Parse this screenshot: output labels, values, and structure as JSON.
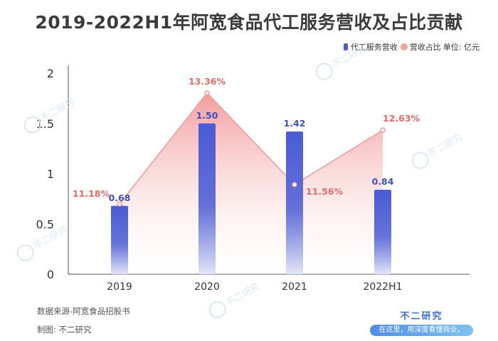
{
  "title": "2019-2022H1年阿宽食品代工服务营收及占比贡献",
  "legend": {
    "bar_label": "代工服务营收",
    "line_label": "营收占比",
    "unit_label": "单位: 亿元"
  },
  "footer": {
    "source": "数据来源-阿宽食品招股书",
    "credit": "制图: 不二研究"
  },
  "brand": {
    "name": "不二研究",
    "slogan": "在这里，用深度看懂商业。"
  },
  "watermark_text": "不二研究",
  "colors": {
    "bar_top": "#4a5bd4",
    "bar_bottom": "#e3e6f8",
    "area_top": "#f08a8a",
    "value_label_bar": "#3f4fb8",
    "value_label_pct": "#e16a6a",
    "axis": "#555555"
  },
  "chart_data": {
    "type": "bar",
    "title": "2019-2022H1年阿宽食品代工服务营收及占比贡献",
    "categories": [
      "2019",
      "2020",
      "2021",
      "2022H1"
    ],
    "series": [
      {
        "name": "代工服务营收",
        "type": "bar",
        "values": [
          0.68,
          1.5,
          1.42,
          0.84
        ],
        "labels": [
          "0.68",
          "1.50",
          "1.42",
          "0.84"
        ]
      },
      {
        "name": "营收占比",
        "type": "area",
        "values": [
          11.18,
          13.36,
          11.56,
          12.63
        ],
        "labels": [
          "11.18%",
          "13.36%",
          "11.56%",
          "12.63%"
        ]
      }
    ],
    "ylim": [
      0,
      2
    ],
    "yticks": [
      "0",
      "0.5",
      "1",
      "1.5",
      "2"
    ],
    "ytick_values": [
      0,
      0.5,
      1,
      1.5,
      2
    ],
    "grid": false,
    "legend_position": "top-right"
  }
}
